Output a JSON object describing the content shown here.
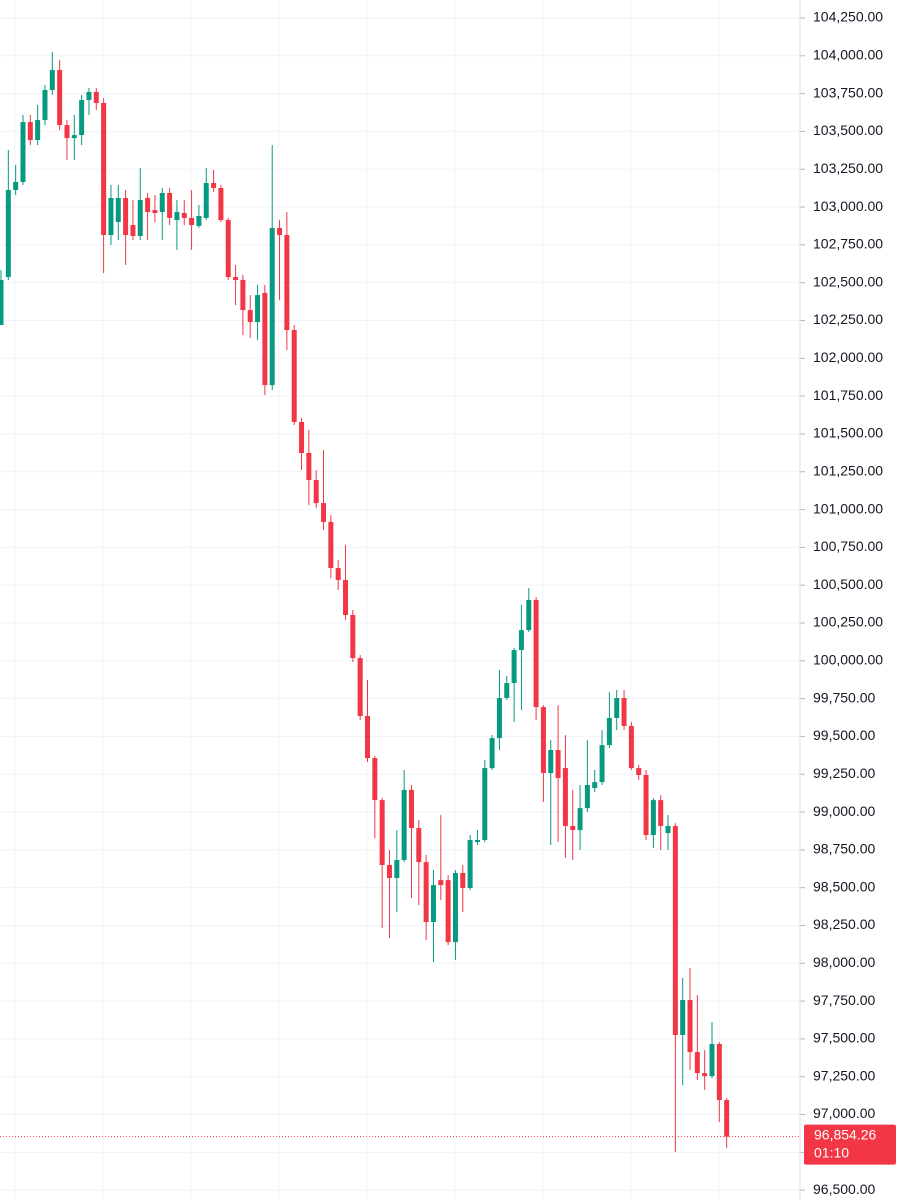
{
  "chart_data": {
    "type": "candlestick",
    "up_color": "#089981",
    "down_color": "#f23645",
    "grid": true,
    "ylim": [
      96435,
      104369
    ],
    "yticks": [
      {
        "value": 96500,
        "label": "96,500.00"
      },
      {
        "value": 96750,
        "label": "96,750.00"
      },
      {
        "value": 97000,
        "label": "97,000.00"
      },
      {
        "value": 97250,
        "label": "97,250.00"
      },
      {
        "value": 97500,
        "label": "97,500.00"
      },
      {
        "value": 97750,
        "label": "97,750.00"
      },
      {
        "value": 98000,
        "label": "98,000.00"
      },
      {
        "value": 98250,
        "label": "98,250.00"
      },
      {
        "value": 98500,
        "label": "98,500.00"
      },
      {
        "value": 98750,
        "label": "98,750.00"
      },
      {
        "value": 99000,
        "label": "99,000.00"
      },
      {
        "value": 99250,
        "label": "99,250.00"
      },
      {
        "value": 99500,
        "label": "99,500.00"
      },
      {
        "value": 99750,
        "label": "99,750.00"
      },
      {
        "value": 100000,
        "label": "100,000.00"
      },
      {
        "value": 100250,
        "label": "100,250.00"
      },
      {
        "value": 100500,
        "label": "100,500.00"
      },
      {
        "value": 100750,
        "label": "100,750.00"
      },
      {
        "value": 101000,
        "label": "101,000.00"
      },
      {
        "value": 101250,
        "label": "101,250.00"
      },
      {
        "value": 101500,
        "label": "101,500.00"
      },
      {
        "value": 101750,
        "label": "101,750.00"
      },
      {
        "value": 102000,
        "label": "102,000.00"
      },
      {
        "value": 102250,
        "label": "102,250.00"
      },
      {
        "value": 102500,
        "label": "102,500.00"
      },
      {
        "value": 102750,
        "label": "102,750.00"
      },
      {
        "value": 103000,
        "label": "103,000.00"
      },
      {
        "value": 103250,
        "label": "103,250.00"
      },
      {
        "value": 103500,
        "label": "103,500.00"
      },
      {
        "value": 103750,
        "label": "103,750.00"
      },
      {
        "value": 104000,
        "label": "104,000.00"
      },
      {
        "value": 104250,
        "label": "104,250.00"
      }
    ],
    "last_price": {
      "value": 96854.26,
      "label": "96,854.26",
      "color": "#f23645"
    },
    "countdown": "01:10",
    "open": [
      102220,
      102537,
      103113,
      103166,
      103562,
      103443,
      103576,
      103774,
      103906,
      103542,
      103456,
      103476,
      103708,
      103761,
      103688,
      102815,
      102901,
      103060,
      102881,
      102809,
      103060,
      102980,
      102967,
      103093,
      102914,
      102961,
      102928,
      102875,
      102928,
      103159,
      103126,
      102914,
      102537,
      102518,
      102319,
      102240,
      102432,
      101823,
      102862,
      102815,
      102187,
      101579,
      101374,
      101195,
      101043,
      100918,
      100613,
      100534,
      100303,
      100018,
      99635,
      99357,
      99079,
      98650,
      98564,
      98683,
      99146,
      98894,
      98669,
      98273,
      98550,
      98550,
      98140,
      98597,
      98498,
      98802,
      98815,
      99291,
      99489,
      99754,
      99853,
      100071,
      100203,
      100402,
      99694,
      99258,
      99410,
      99291,
      98908,
      98881,
      99026,
      99159,
      99198,
      99443,
      99622,
      99754,
      99569,
      99291,
      99245,
      98848,
      99079,
      98861,
      98908,
      97526,
      97757,
      97413,
      97274,
      97254,
      97466,
      97096
    ],
    "high": [
      102584,
      103377,
      103278,
      103609,
      103609,
      103675,
      103807,
      104025,
      103972,
      103576,
      103609,
      103741,
      103787,
      103787,
      103721,
      103146,
      103146,
      103113,
      103047,
      103258,
      103093,
      103080,
      103126,
      103126,
      103047,
      103047,
      103113,
      103014,
      103258,
      103245,
      103146,
      102928,
      102617,
      102551,
      102418,
      102485,
      102485,
      103410,
      102914,
      102967,
      102220,
      101605,
      101526,
      101261,
      101394,
      100964,
      100666,
      100766,
      100336,
      100038,
      99873,
      99370,
      99093,
      98749,
      98881,
      99278,
      99179,
      98947,
      98716,
      98617,
      98980,
      98583,
      98617,
      98650,
      98848,
      98881,
      99344,
      99509,
      99939,
      99899,
      100084,
      100369,
      100481,
      100422,
      99707,
      99476,
      99707,
      99509,
      99146,
      99179,
      99476,
      99278,
      99542,
      99793,
      99807,
      99807,
      99595,
      99311,
      99278,
      99093,
      99112,
      98980,
      98927,
      97902,
      97969,
      97790,
      97426,
      97612,
      97479,
      97109
    ],
    "low": [
      102220,
      102518,
      103080,
      103146,
      103410,
      103410,
      103542,
      103741,
      103509,
      103311,
      103311,
      103410,
      103609,
      103642,
      102564,
      102749,
      102782,
      102617,
      102782,
      102782,
      102782,
      102901,
      102782,
      102881,
      102716,
      102881,
      102716,
      102862,
      102914,
      103100,
      102901,
      102518,
      102352,
      102154,
      102134,
      102121,
      101757,
      101790,
      102385,
      102055,
      101559,
      101261,
      101030,
      101010,
      100865,
      100547,
      100468,
      100270,
      99992,
      99608,
      99331,
      98828,
      98233,
      98167,
      98339,
      98669,
      98431,
      98385,
      98154,
      98008,
      98418,
      98121,
      98022,
      98339,
      98484,
      98782,
      98802,
      99278,
      99410,
      99741,
      99595,
      99674,
      100190,
      99608,
      99066,
      98782,
      98802,
      98696,
      98683,
      98749,
      99000,
      99132,
      99179,
      99423,
      99542,
      99542,
      99278,
      99212,
      98815,
      98762,
      98749,
      98749,
      96752,
      97195,
      97294,
      97228,
      97162,
      97241,
      96950,
      96778
    ],
    "close": [
      102518,
      103113,
      103166,
      103562,
      103443,
      103576,
      103774,
      103906,
      103542,
      103456,
      103476,
      103708,
      103761,
      103688,
      102815,
      103060,
      103060,
      102815,
      102809,
      103047,
      102967,
      102961,
      103093,
      102928,
      102967,
      102928,
      102881,
      102941,
      103159,
      103126,
      102914,
      102537,
      102518,
      102319,
      102240,
      102418,
      101823,
      102862,
      102815,
      102187,
      101579,
      101374,
      101195,
      101043,
      100918,
      100613,
      100534,
      100303,
      100018,
      99635,
      99357,
      99079,
      98650,
      98564,
      98683,
      99146,
      98894,
      98669,
      98273,
      98517,
      98517,
      98140,
      98597,
      98498,
      98815,
      98815,
      99291,
      99489,
      99754,
      99853,
      100071,
      100203,
      100402,
      99694,
      99258,
      99410,
      99225,
      98908,
      98881,
      99026,
      99179,
      99198,
      99443,
      99622,
      99754,
      99569,
      99291,
      99245,
      98848,
      99079,
      98908,
      98908,
      97526,
      97757,
      97413,
      97274,
      97254,
      97466,
      97096,
      96854.26
    ]
  }
}
